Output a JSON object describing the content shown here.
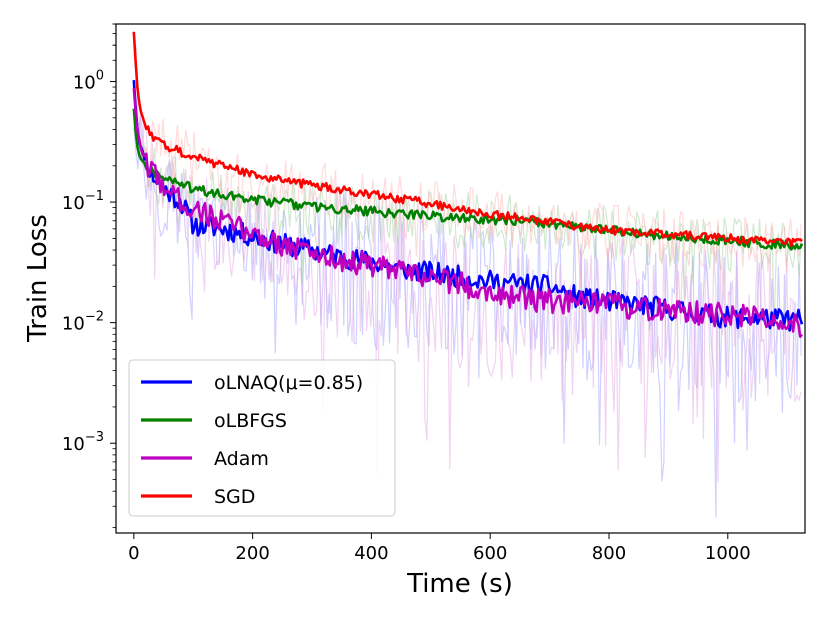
{
  "chart_data": {
    "type": "line",
    "title": "",
    "xlabel": "Time (s)",
    "ylabel": "Train Loss",
    "xlim": [
      -30,
      1130
    ],
    "ylim": [
      0.00018,
      3.0
    ],
    "yscale": "log",
    "x_ticks": [
      {
        "value": 0,
        "label": "0"
      },
      {
        "value": 200,
        "label": "200"
      },
      {
        "value": 400,
        "label": "400"
      },
      {
        "value": 600,
        "label": "600"
      },
      {
        "value": 800,
        "label": "800"
      },
      {
        "value": 1000,
        "label": "1000"
      }
    ],
    "y_ticks": [
      {
        "value": 1,
        "base": "10",
        "exp": "0"
      },
      {
        "value": 0.1,
        "base": "10",
        "exp": "−1"
      },
      {
        "value": 0.01,
        "base": "10",
        "exp": "−2"
      },
      {
        "value": 0.001,
        "base": "10",
        "exp": "−3"
      }
    ],
    "legend_position": "bottom-left",
    "series": [
      {
        "name": "oLNAQ(μ=0.85)",
        "color": "#0000ff",
        "x": [
          0,
          5,
          10,
          20,
          30,
          50,
          80,
          100,
          150,
          200,
          250,
          300,
          350,
          400,
          450,
          500,
          550,
          600,
          650,
          700,
          750,
          800,
          850,
          900,
          950,
          1000,
          1050,
          1100,
          1125
        ],
        "y": [
          1.05,
          0.45,
          0.3,
          0.22,
          0.17,
          0.13,
          0.1,
          0.065,
          0.06,
          0.052,
          0.045,
          0.04,
          0.035,
          0.032,
          0.028,
          0.026,
          0.024,
          0.022,
          0.021,
          0.02,
          0.016,
          0.015,
          0.014,
          0.013,
          0.012,
          0.011,
          0.011,
          0.0105,
          0.0105
        ],
        "noise": 0.09,
        "faint_color": "#9999ff"
      },
      {
        "name": "oLBFGS",
        "color": "#008000",
        "x": [
          0,
          5,
          10,
          20,
          30,
          50,
          80,
          100,
          150,
          200,
          250,
          300,
          350,
          400,
          450,
          500,
          550,
          600,
          650,
          700,
          750,
          800,
          850,
          900,
          950,
          1000,
          1050,
          1100,
          1125
        ],
        "y": [
          0.6,
          0.3,
          0.24,
          0.2,
          0.18,
          0.16,
          0.14,
          0.13,
          0.115,
          0.105,
          0.098,
          0.092,
          0.088,
          0.084,
          0.08,
          0.077,
          0.074,
          0.072,
          0.07,
          0.066,
          0.062,
          0.058,
          0.055,
          0.052,
          0.05,
          0.048,
          0.046,
          0.044,
          0.043
        ],
        "noise": 0.04,
        "faint_color": "#99cc99"
      },
      {
        "name": "Adam",
        "color": "#bf00bf",
        "x": [
          0,
          5,
          10,
          20,
          30,
          50,
          80,
          100,
          150,
          200,
          250,
          300,
          350,
          400,
          450,
          500,
          550,
          600,
          650,
          700,
          750,
          800,
          850,
          900,
          950,
          1000,
          1050,
          1100,
          1125
        ],
        "y": [
          0.9,
          0.4,
          0.3,
          0.22,
          0.18,
          0.14,
          0.1,
          0.09,
          0.068,
          0.055,
          0.045,
          0.038,
          0.033,
          0.03,
          0.026,
          0.024,
          0.021,
          0.018,
          0.016,
          0.015,
          0.0145,
          0.014,
          0.013,
          0.0125,
          0.012,
          0.0115,
          0.011,
          0.0105,
          0.009
        ],
        "noise": 0.1,
        "faint_color": "#e0a0e0"
      },
      {
        "name": "SGD",
        "color": "#ff0000",
        "x": [
          0,
          5,
          10,
          20,
          30,
          50,
          80,
          100,
          150,
          200,
          250,
          300,
          350,
          400,
          450,
          500,
          550,
          600,
          650,
          700,
          750,
          800,
          850,
          900,
          950,
          1000,
          1050,
          1100,
          1125
        ],
        "y": [
          2.6,
          1.0,
          0.6,
          0.42,
          0.35,
          0.3,
          0.26,
          0.24,
          0.2,
          0.17,
          0.152,
          0.138,
          0.126,
          0.116,
          0.106,
          0.097,
          0.088,
          0.08,
          0.074,
          0.068,
          0.063,
          0.059,
          0.056,
          0.054,
          0.052,
          0.05,
          0.048,
          0.047,
          0.046
        ],
        "noise": 0.035,
        "faint_color": "#ffb0b0"
      }
    ]
  }
}
